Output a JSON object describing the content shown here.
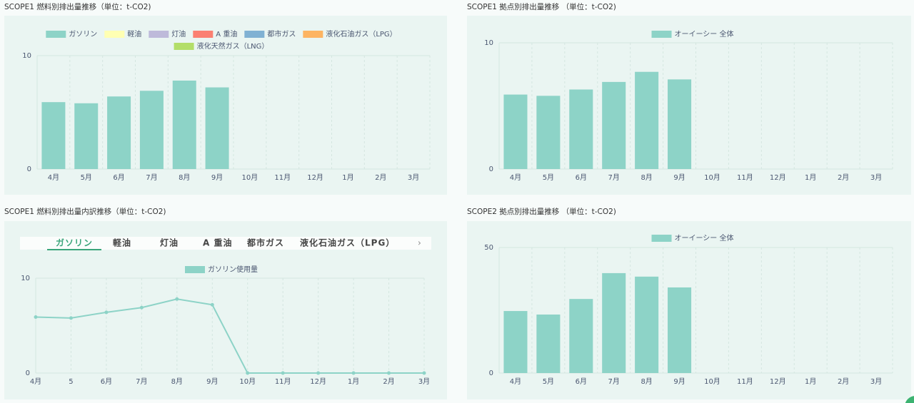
{
  "chart_data": [
    {
      "type": "bar",
      "title": "SCOPE1 燃料別排出量推移（単位：t-CO2)",
      "categories": [
        "4月",
        "5月",
        "6月",
        "7月",
        "8月",
        "9月",
        "10月",
        "11月",
        "12月",
        "1月",
        "2月",
        "3月"
      ],
      "series": [
        {
          "name": "ガソリン",
          "color": "#8dd3c7",
          "values": [
            5.9,
            5.8,
            6.4,
            6.9,
            7.8,
            7.2,
            null,
            null,
            null,
            null,
            null,
            null
          ]
        },
        {
          "name": "軽油",
          "color": "#ffffb3",
          "values": [
            null,
            null,
            null,
            null,
            null,
            null,
            null,
            null,
            null,
            null,
            null,
            null
          ]
        },
        {
          "name": "灯油",
          "color": "#bebada",
          "values": [
            null,
            null,
            null,
            null,
            null,
            null,
            null,
            null,
            null,
            null,
            null,
            null
          ]
        },
        {
          "name": "A 重油",
          "color": "#fb8072",
          "values": [
            null,
            null,
            null,
            null,
            null,
            null,
            null,
            null,
            null,
            null,
            null,
            null
          ]
        },
        {
          "name": "都市ガス",
          "color": "#80b1d3",
          "values": [
            null,
            null,
            null,
            null,
            null,
            null,
            null,
            null,
            null,
            null,
            null,
            null
          ]
        },
        {
          "name": "液化石油ガス（LPG）",
          "color": "#fdb462",
          "values": [
            null,
            null,
            null,
            null,
            null,
            null,
            null,
            null,
            null,
            null,
            null,
            null
          ]
        },
        {
          "name": "液化天然ガス（LNG）",
          "color": "#b3de69",
          "values": [
            null,
            null,
            null,
            null,
            null,
            null,
            null,
            null,
            null,
            null,
            null,
            null
          ]
        }
      ],
      "ylim": [
        0,
        10
      ],
      "yticks": [
        0,
        10
      ],
      "stacked": true
    },
    {
      "type": "bar",
      "title": "SCOPE1 拠点別排出量推移 （単位：t-CO2)",
      "categories": [
        "4月",
        "5月",
        "6月",
        "7月",
        "8月",
        "9月",
        "10月",
        "11月",
        "12月",
        "1月",
        "2月",
        "3月"
      ],
      "series": [
        {
          "name": "オーイーシー 全体",
          "color": "#8dd3c7",
          "values": [
            5.9,
            5.8,
            6.3,
            6.9,
            7.7,
            7.1,
            null,
            null,
            null,
            null,
            null,
            null
          ]
        }
      ],
      "ylim": [
        0,
        10
      ],
      "yticks": [
        0,
        10
      ]
    },
    {
      "type": "line",
      "title": "SCOPE1 燃料別排出量内訳推移（単位：t-CO2)",
      "tabs": [
        "ガソリン",
        "軽油",
        "灯油",
        "A 重油",
        "都市ガス",
        "液化石油ガス（LPG）"
      ],
      "categories": [
        "4月",
        "5",
        "6月",
        "7月",
        "8月",
        "9月",
        "10月",
        "11月",
        "12月",
        "1月",
        "2月",
        "3月"
      ],
      "series": [
        {
          "name": "ガソリン使用量",
          "color": "#8dd3c7",
          "values": [
            5.9,
            5.8,
            6.4,
            6.9,
            7.8,
            7.2,
            0,
            0,
            0,
            0,
            0,
            0
          ]
        }
      ],
      "ylim": [
        0,
        10
      ],
      "yticks": [
        0,
        10
      ]
    },
    {
      "type": "bar",
      "title": "SCOPE2 拠点別排出量推移 （単位：t-CO2)",
      "categories": [
        "4月",
        "5月",
        "6月",
        "7月",
        "8月",
        "9月",
        "10月",
        "11月",
        "12月",
        "1月",
        "2月",
        "3月"
      ],
      "series": [
        {
          "name": "オーイーシー 全体",
          "color": "#8dd3c7",
          "values": [
            24.7,
            23.3,
            29.5,
            39.8,
            38.4,
            34.1,
            null,
            null,
            null,
            null,
            null,
            null
          ]
        }
      ],
      "ylim": [
        0,
        50
      ],
      "yticks": [
        0,
        50
      ]
    }
  ]
}
